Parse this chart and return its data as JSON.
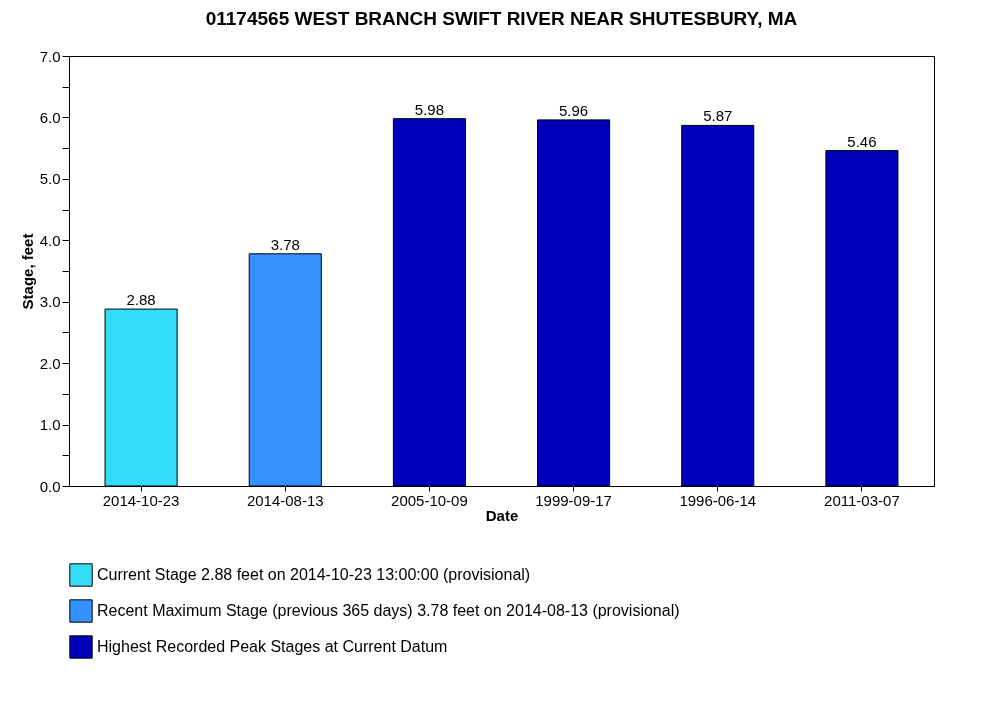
{
  "chart_data": {
    "type": "bar",
    "title": "01174565 WEST BRANCH SWIFT RIVER NEAR SHUTESBURY, MA",
    "xlabel": "Date",
    "ylabel": "Stage, feet",
    "categories": [
      "2014-10-23",
      "2014-08-13",
      "2005-10-09",
      "1999-09-17",
      "1996-06-14",
      "2011-03-07"
    ],
    "series": [
      {
        "name": "Current Stage 2.88 feet on 2014-10-23 13:00:00 (provisional)",
        "color": "#33ddf8",
        "values": [
          2.88,
          null,
          null,
          null,
          null,
          null
        ]
      },
      {
        "name": "Recent Maximum Stage (previous 365 days) 3.78 feet on 2014-08-13 (provisional)",
        "color": "#3392ff",
        "values": [
          null,
          3.78,
          null,
          null,
          null,
          null
        ]
      },
      {
        "name": "Highest Recorded Peak Stages at Current Datum",
        "color": "#0000bb",
        "values": [
          null,
          null,
          5.98,
          5.96,
          5.87,
          5.46
        ]
      }
    ],
    "ylim": [
      0,
      7
    ],
    "yticks": [
      {
        "value": 0,
        "label": "0.0"
      },
      {
        "value": 0.5,
        "label": null
      },
      {
        "value": 1,
        "label": "1.0"
      },
      {
        "value": 1.5,
        "label": null
      },
      {
        "value": 2,
        "label": "2.0"
      },
      {
        "value": 2.5,
        "label": null
      },
      {
        "value": 3,
        "label": "3.0"
      },
      {
        "value": 3.5,
        "label": null
      },
      {
        "value": 4,
        "label": "4.0"
      },
      {
        "value": 4.5,
        "label": null
      },
      {
        "value": 5,
        "label": "5.0"
      },
      {
        "value": 5.5,
        "label": null
      },
      {
        "value": 6,
        "label": "6.0"
      },
      {
        "value": 6.5,
        "label": null
      },
      {
        "value": 7,
        "label": "7.0"
      }
    ],
    "grid": false,
    "legend": "bottom",
    "data_labels": true
  }
}
